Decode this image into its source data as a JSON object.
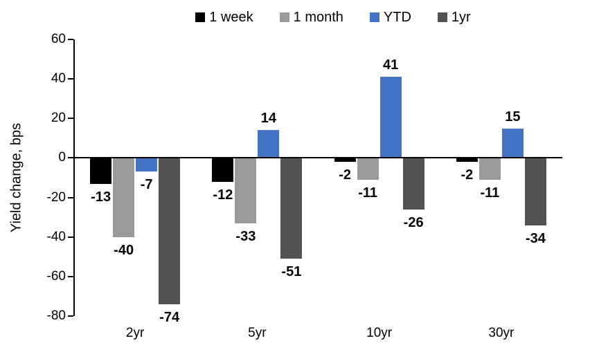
{
  "chart_data": {
    "type": "bar",
    "title": "",
    "xlabel": "",
    "ylabel": "Yield change, bps",
    "categories": [
      "2yr",
      "5yr",
      "10yr",
      "30yr"
    ],
    "series": [
      {
        "name": "1 week",
        "color": "#000000",
        "values": [
          -13,
          -12,
          -2,
          -2
        ]
      },
      {
        "name": "1 month",
        "color": "#9A9A9A",
        "values": [
          -40,
          -33,
          -11,
          -11
        ]
      },
      {
        "name": "YTD",
        "color": "#4472C4",
        "values": [
          -7,
          14,
          41,
          15
        ]
      },
      {
        "name": "1yr",
        "color": "#525252",
        "values": [
          -74,
          -51,
          -26,
          -34
        ]
      }
    ],
    "ylim": [
      -80,
      60
    ],
    "yticks": [
      60,
      40,
      20,
      0,
      -20,
      -40,
      -60,
      -80
    ],
    "grid": false,
    "legend_position": "top",
    "data_labels": true,
    "axis_color": "#000000"
  }
}
